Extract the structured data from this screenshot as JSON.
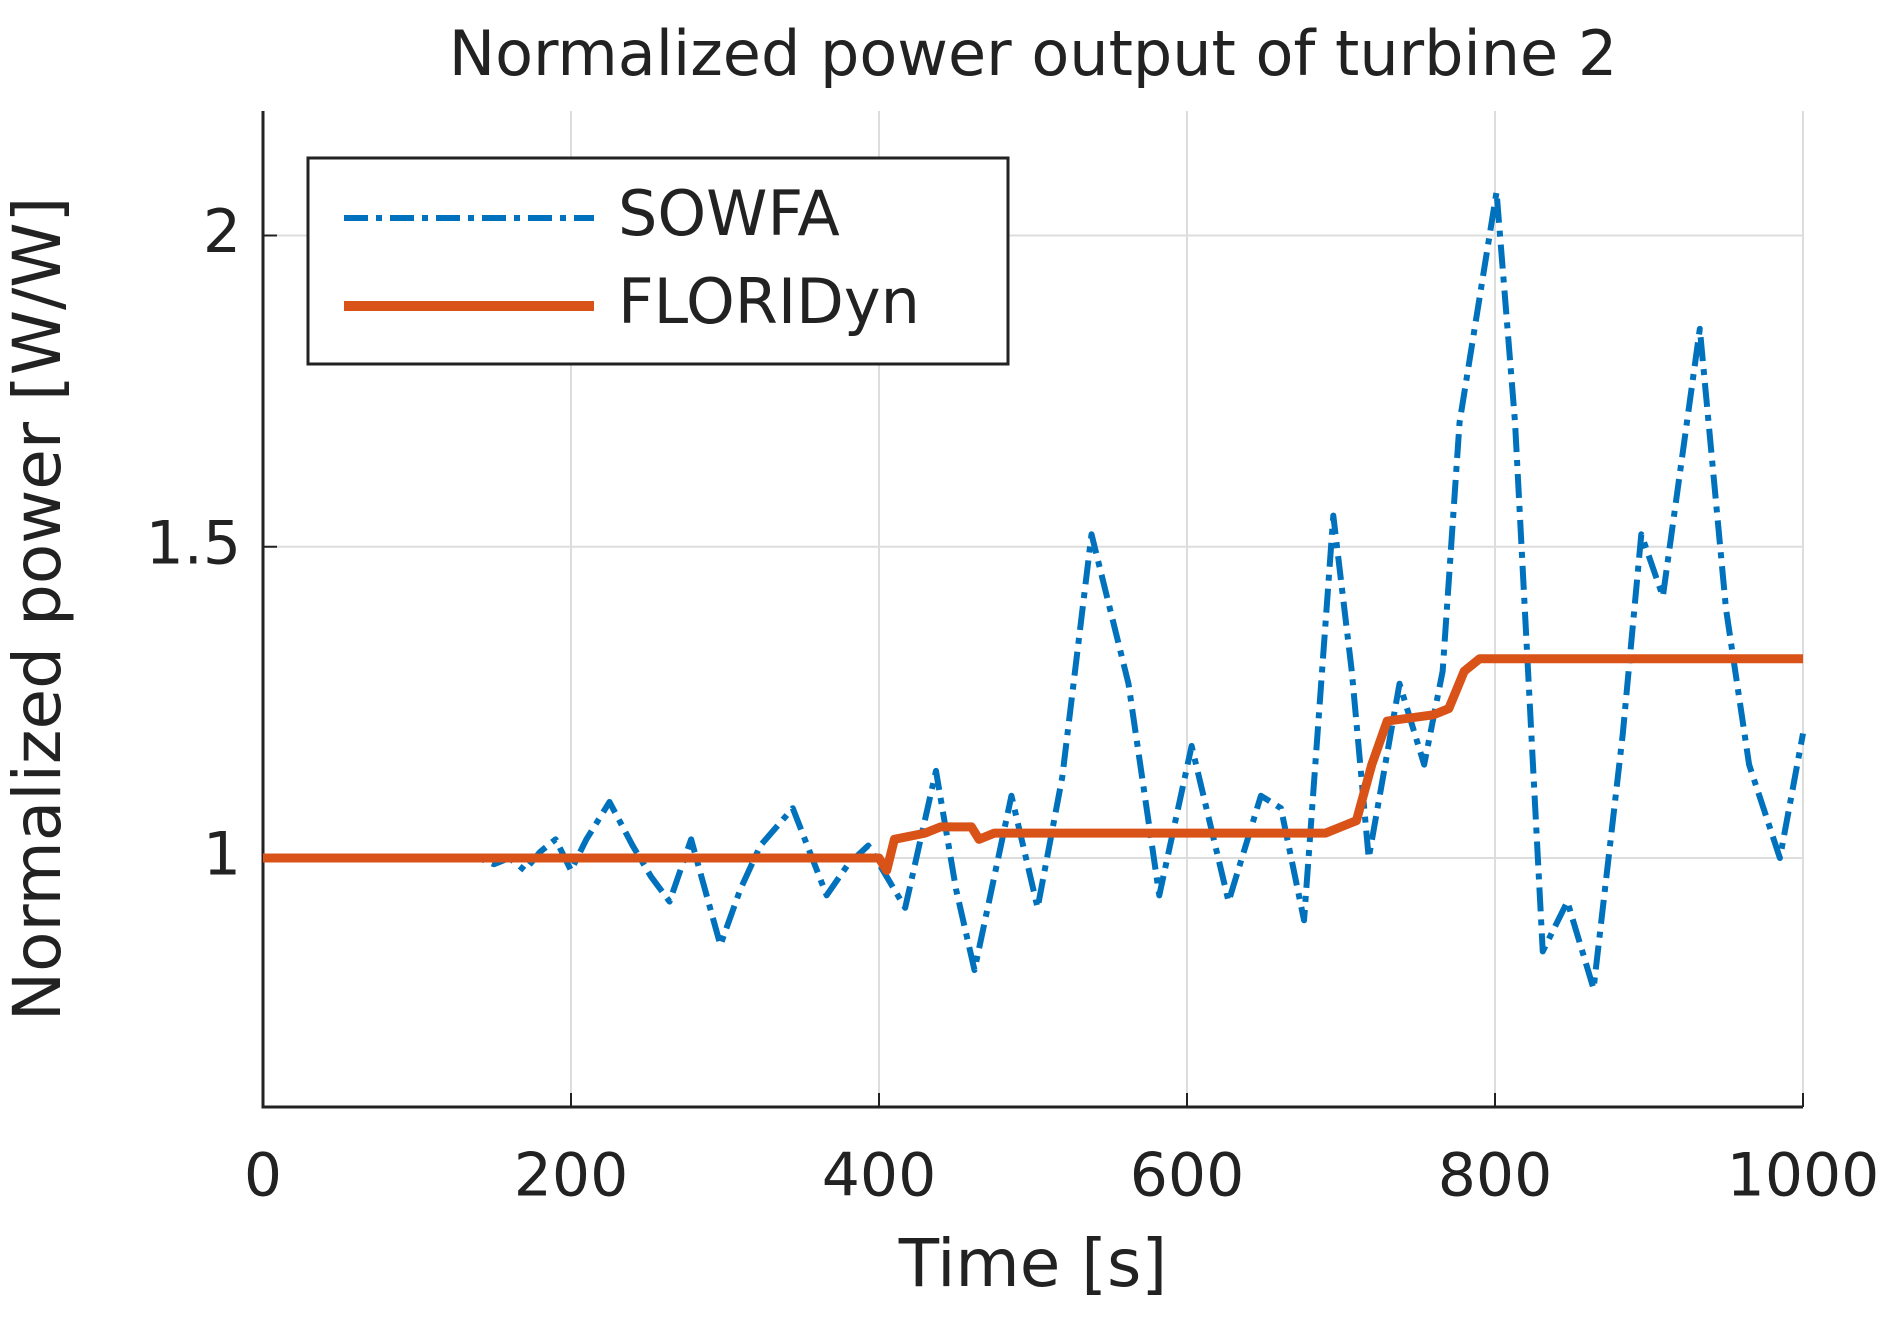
{
  "chart_data": {
    "type": "line",
    "title": "Normalized power output of turbine 2",
    "x_label": "Time [s]",
    "y_label": "Normalized power [W/W]",
    "xlim": [
      0,
      1000
    ],
    "ylim": [
      0.6,
      2.2
    ],
    "xticks": [
      0,
      200,
      400,
      600,
      800,
      1000
    ],
    "yticks": [
      1,
      1.5,
      2
    ],
    "grid": true,
    "legend": "upper left",
    "series": [
      {
        "name": "SOWFA",
        "color": "#0072BD",
        "style": "dashdot",
        "x": [
          0,
          140,
          150,
          160,
          170,
          180,
          190,
          200,
          210,
          225,
          240,
          252,
          264,
          278,
          297,
          310,
          323,
          344,
          366,
          380,
          393,
          417,
          437,
          450,
          462,
          486,
          503,
          519,
          538,
          562,
          582,
          603,
          627,
          648,
          661,
          676,
          695,
          707,
          718,
          738,
          754,
          766,
          777,
          801,
          813,
          831,
          847,
          864,
          883,
          895,
          909,
          933,
          950,
          965,
          985,
          1000
        ],
        "values": [
          1.0,
          1.0,
          0.99,
          1.0,
          0.98,
          1.01,
          1.03,
          0.98,
          1.03,
          1.09,
          1.02,
          0.97,
          0.93,
          1.03,
          0.86,
          0.95,
          1.02,
          1.08,
          0.94,
          0.99,
          1.02,
          0.92,
          1.14,
          0.95,
          0.82,
          1.1,
          0.92,
          1.13,
          1.52,
          1.28,
          0.94,
          1.18,
          0.93,
          1.1,
          1.08,
          0.9,
          1.55,
          1.3,
          1.0,
          1.28,
          1.15,
          1.3,
          1.7,
          2.07,
          1.7,
          0.85,
          0.93,
          0.79,
          1.2,
          1.52,
          1.42,
          1.85,
          1.4,
          1.15,
          1.0,
          1.2
        ]
      },
      {
        "name": "FLORIDyn",
        "color": "#D95319",
        "style": "solid",
        "x": [
          0,
          400,
          405,
          410,
          430,
          440,
          460,
          465,
          475,
          690,
          700,
          710,
          720,
          730,
          760,
          770,
          780,
          790,
          1000
        ],
        "values": [
          1.0,
          1.0,
          0.98,
          1.03,
          1.04,
          1.05,
          1.05,
          1.03,
          1.04,
          1.04,
          1.05,
          1.06,
          1.15,
          1.22,
          1.23,
          1.24,
          1.3,
          1.32,
          1.32
        ]
      }
    ]
  }
}
